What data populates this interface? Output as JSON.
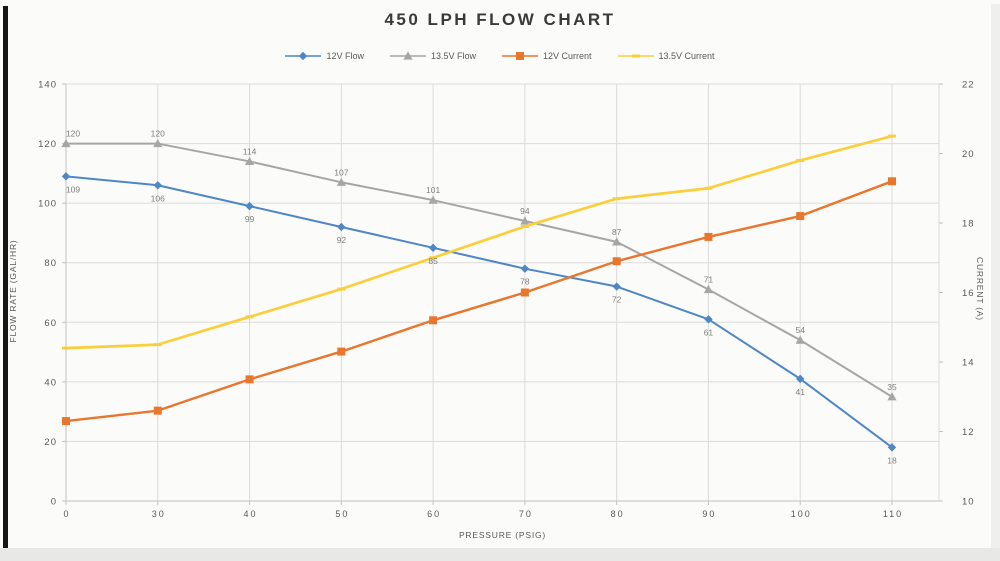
{
  "chart_data": {
    "type": "line",
    "title": "450 LPH FLOW CHART",
    "xlabel": "PRESSURE (PSIG)",
    "ylabel_left": "FLOW RATE (GAL/HR)",
    "ylabel_right": "CURRENT (A)",
    "categories": [
      "0",
      "30",
      "40",
      "50",
      "60",
      "70",
      "80",
      "90",
      "100",
      "110"
    ],
    "y_left": {
      "min": 0,
      "max": 140,
      "step": 20
    },
    "y_right": {
      "min": 10,
      "max": 22,
      "step": 2
    },
    "grid": true,
    "legend_position": "top",
    "series": [
      {
        "name": "12V Flow",
        "axis": "left",
        "color": "#4e86c6",
        "marker": "diamond",
        "values": [
          109,
          106,
          99,
          92,
          85,
          78,
          72,
          61,
          41,
          18
        ],
        "data_labels": "below"
      },
      {
        "name": "13.5V Flow",
        "axis": "left",
        "color": "#a6a6a6",
        "marker": "triangle",
        "values": [
          120,
          120,
          114,
          107,
          101,
          94,
          87,
          71,
          54,
          35
        ],
        "data_labels": "above"
      },
      {
        "name": "12V Current",
        "axis": "right",
        "color": "#e8762e",
        "marker": "square",
        "values": [
          12.3,
          12.6,
          13.5,
          14.3,
          15.2,
          16.0,
          16.9,
          17.6,
          18.2,
          19.2
        ],
        "data_labels": "none"
      },
      {
        "name": "13.5V Current",
        "axis": "right",
        "color": "#fbcf3b",
        "marker": "dash",
        "values": [
          14.4,
          14.5,
          15.3,
          16.1,
          17.0,
          17.9,
          18.7,
          19.0,
          19.8,
          20.5
        ],
        "data_labels": "none"
      }
    ]
  }
}
